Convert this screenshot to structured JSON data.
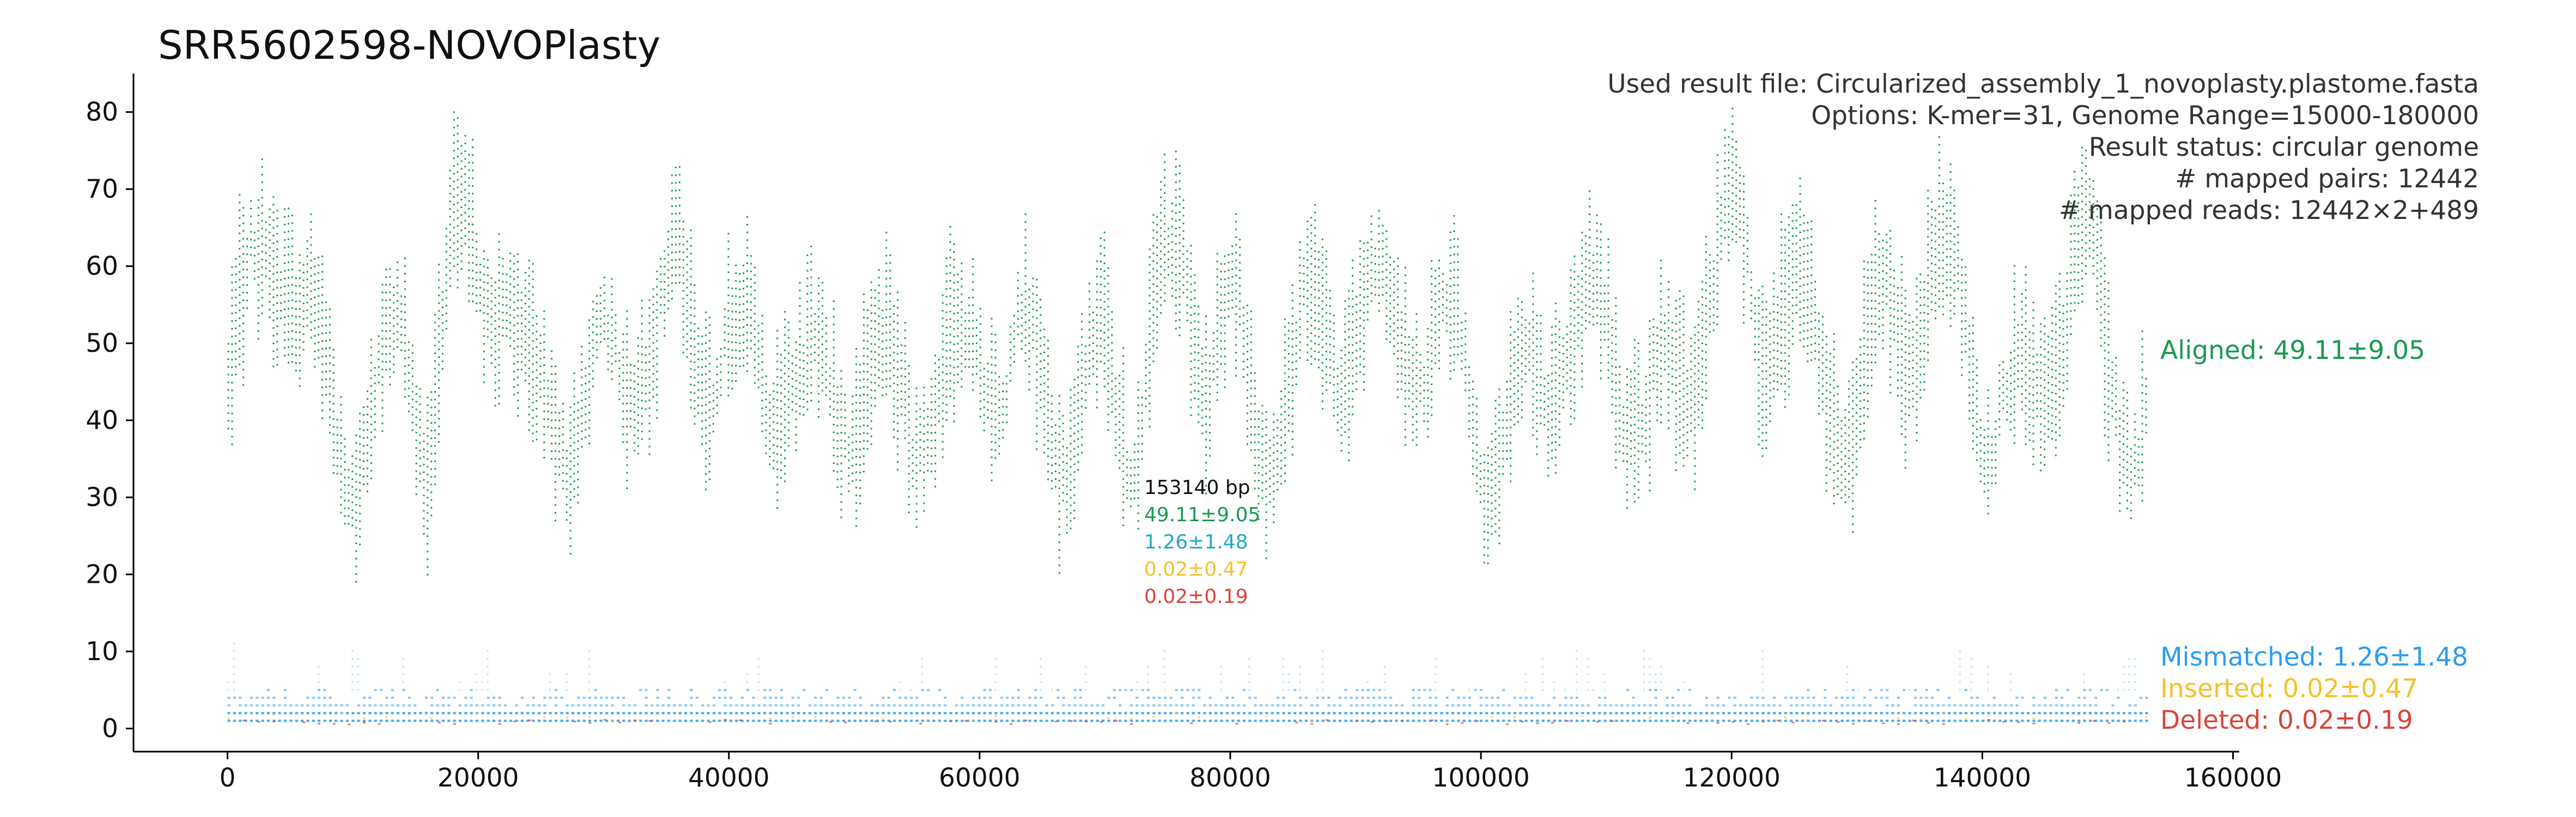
{
  "chart_data": {
    "type": "scatter",
    "title": "SRR5602598-NOVOPlasty",
    "info_lines": [
      "Used result file: Circularized_assembly_1_novoplasty.plastome.fasta",
      "Options: K-mer=31, Genome Range=15000-180000",
      "Result status: circular genome",
      "# mapped pairs: 12442",
      "# mapped reads: 12442×2+489"
    ],
    "xlabel": "",
    "ylabel": "",
    "xlim": [
      -7500,
      160500
    ],
    "ylim": [
      -3,
      85
    ],
    "xticks": [
      0,
      20000,
      40000,
      60000,
      80000,
      100000,
      120000,
      140000,
      160000
    ],
    "yticks": [
      0,
      10,
      20,
      30,
      40,
      50,
      60,
      70,
      80
    ],
    "genome_length_bp": 153140,
    "center_summary": {
      "length_label": "153140 bp",
      "lines": [
        "49.11±9.05",
        "1.26±1.48",
        "0.02±0.47",
        "0.02±0.19"
      ]
    },
    "series": [
      {
        "name": "Aligned",
        "label": "Aligned: 49.11±9.05",
        "color": "#1a9a50",
        "mean": 49.11,
        "sd": 9.05,
        "profile_x": [
          0,
          2000,
          4000,
          6000,
          8000,
          10000,
          12000,
          14000,
          16000,
          18000,
          20000,
          22000,
          24000,
          26000,
          28000,
          30000,
          32000,
          34000,
          36000,
          38000,
          40000,
          42000,
          44000,
          46000,
          48000,
          50000,
          52000,
          54000,
          56000,
          58000,
          60000,
          62000,
          64000,
          66000,
          68000,
          70000,
          72000,
          74000,
          76000,
          78000,
          80000,
          82000,
          84000,
          86000,
          88000,
          90000,
          92000,
          94000,
          96000,
          98000,
          100000,
          102000,
          104000,
          106000,
          108000,
          110000,
          112000,
          114000,
          116000,
          118000,
          120000,
          122000,
          124000,
          126000,
          128000,
          130000,
          132000,
          134000,
          136000,
          138000,
          140000,
          142000,
          144000,
          146000,
          148000,
          150000,
          152000,
          153140
        ],
        "profile_y": [
          44,
          52,
          63,
          50,
          44,
          42,
          46,
          51,
          38,
          55,
          58,
          60,
          46,
          48,
          44,
          42,
          47,
          45,
          57,
          52,
          54,
          50,
          47,
          38,
          40,
          43,
          46,
          50,
          47,
          45,
          48,
          42,
          44,
          43,
          45,
          52,
          41,
          50,
          55,
          48,
          54,
          43,
          50,
          52,
          48,
          51,
          50,
          52,
          55,
          54,
          42,
          36,
          37,
          46,
          50,
          55,
          52,
          44,
          43,
          55,
          60,
          52,
          61,
          56,
          48,
          42,
          48,
          50,
          56,
          57,
          50,
          44,
          43,
          52,
          55,
          46,
          40,
          42
        ],
        "min": 19,
        "max": 81
      },
      {
        "name": "Mismatched",
        "label": "Mismatched: 1.26±1.48",
        "color": "#2a9df4",
        "mean": 1.26,
        "sd": 1.48,
        "bands": [
          0,
          1,
          2,
          3,
          4,
          5
        ],
        "max": 19
      },
      {
        "name": "Inserted",
        "label": "Inserted: 0.02±0.47",
        "color": "#f5c02b",
        "mean": 0.02,
        "sd": 0.47
      },
      {
        "name": "Deleted",
        "label": "Deleted: 0.02±0.19",
        "color": "#d9443a",
        "mean": 0.02,
        "sd": 0.19
      }
    ]
  }
}
